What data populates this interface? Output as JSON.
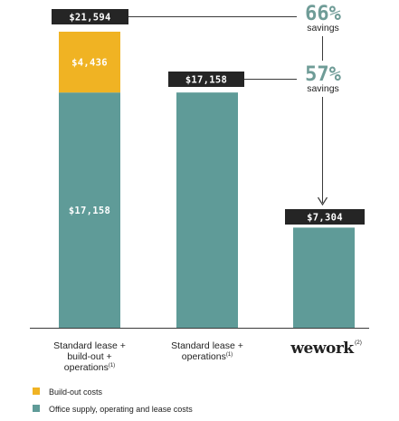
{
  "chart_data": {
    "type": "bar",
    "stacked": true,
    "categories": [
      {
        "lines": [
          "Standard lease +",
          "build-out +",
          "operations"
        ],
        "note": "(1)"
      },
      {
        "lines": [
          "Standard lease +",
          "operations"
        ],
        "note": "(1)"
      },
      {
        "lines": [
          "wework"
        ],
        "note": "(2)",
        "logo": true
      }
    ],
    "series": [
      {
        "name": "Office supply, operating and lease costs",
        "key": "ops",
        "color": "#5f9b98",
        "values": [
          17158,
          17158,
          7304
        ]
      },
      {
        "name": "Build-out costs",
        "key": "build",
        "color": "#f0b323",
        "values": [
          4436,
          0,
          0
        ]
      }
    ],
    "segment_labels": [
      {
        "category": 0,
        "series": 1,
        "text": "$4,436"
      },
      {
        "category": 0,
        "series": 0,
        "text": "$17,158"
      }
    ],
    "total_labels": [
      "$21,594",
      "$17,158",
      "$7,304"
    ],
    "ylim": [
      0,
      21594
    ],
    "grid": false,
    "savings": [
      {
        "percent": "66%",
        "label": "savings"
      },
      {
        "percent": "57%",
        "label": "savings"
      }
    ],
    "legend_position": "bottom-left",
    "colors": {
      "teal": "#5f9b98",
      "gold": "#f0b323",
      "dark": "#252525",
      "savings": "#6f9c97",
      "line": "#3a3a3a"
    }
  }
}
